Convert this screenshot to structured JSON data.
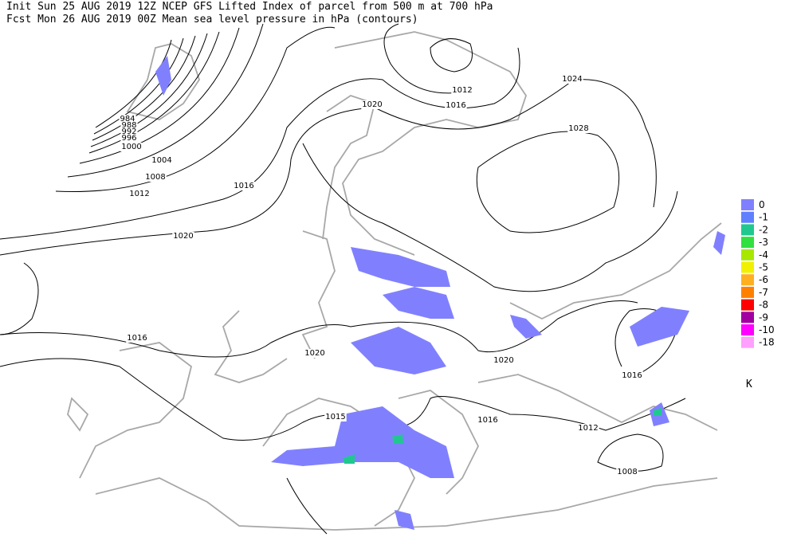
{
  "header": {
    "line1": "Init  Sun 25 AUG 2019 12Z  NCEP GFS Lifted Index of parcel from 500 m at 700 hPa",
    "line2": "Fcst Mon 26 AUG 2019 00Z  Mean sea level pressure in hPa (contours)"
  },
  "legend": {
    "items": [
      {
        "label": "0",
        "color": "#8080ff"
      },
      {
        "label": "-1",
        "color": "#5f7fff"
      },
      {
        "label": "-2",
        "color": "#20c890"
      },
      {
        "label": "-3",
        "color": "#30e040"
      },
      {
        "label": "-4",
        "color": "#a8e800"
      },
      {
        "label": "-5",
        "color": "#f0f000"
      },
      {
        "label": "-6",
        "color": "#ffb020"
      },
      {
        "label": "-7",
        "color": "#ff8000"
      },
      {
        "label": "-8",
        "color": "#ff0000"
      },
      {
        "label": "-9",
        "color": "#a000a0"
      },
      {
        "label": "-10",
        "color": "#ff00ff"
      },
      {
        "label": "-18",
        "color": "#ffa0ff"
      }
    ],
    "unit": "K"
  },
  "contour_labels": [
    "1012",
    "1016",
    "1020",
    "1024",
    "1028",
    "984",
    "988",
    "992",
    "996",
    "1000",
    "1004",
    "1008",
    "1012",
    "1016",
    "1020",
    "1016",
    "1020",
    "1020",
    "1016",
    "1016",
    "1012",
    "1008",
    "1015"
  ]
}
